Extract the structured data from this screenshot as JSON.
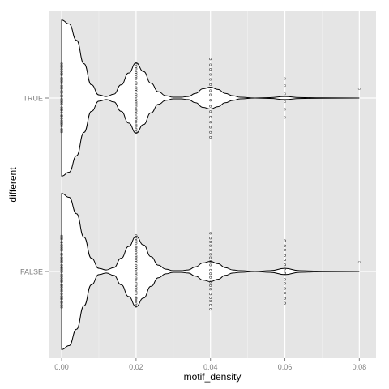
{
  "chart_data": {
    "type": "violin",
    "orientation": "horizontal",
    "title": "",
    "xlabel": "motif_density",
    "ylabel": "different",
    "xlim": [
      -0.0035,
      0.0845
    ],
    "x_ticks": [
      0.0,
      0.02,
      0.04,
      0.06,
      0.08
    ],
    "x_tick_labels": [
      "0.00",
      "0.02",
      "0.04",
      "0.06",
      "0.08"
    ],
    "categories": [
      "FALSE",
      "TRUE"
    ],
    "grid": true,
    "background": "#e5e5e5",
    "gridline_color": "#ffffff",
    "violin_fill": "#ffffff",
    "violin_stroke": "#000000",
    "point_color": "#333333",
    "violin_max_halfwidth_fraction": 0.45,
    "series": [
      {
        "category": "TRUE",
        "density": [
          [
            0.0,
            1.0
          ],
          [
            0.002,
            0.95
          ],
          [
            0.004,
            0.74
          ],
          [
            0.006,
            0.44
          ],
          [
            0.008,
            0.17
          ],
          [
            0.01,
            0.04
          ],
          [
            0.012,
            0.02
          ],
          [
            0.014,
            0.05
          ],
          [
            0.016,
            0.17
          ],
          [
            0.018,
            0.32
          ],
          [
            0.02,
            0.45
          ],
          [
            0.022,
            0.34
          ],
          [
            0.024,
            0.19
          ],
          [
            0.026,
            0.08
          ],
          [
            0.028,
            0.03
          ],
          [
            0.03,
            0.01
          ],
          [
            0.032,
            0.01
          ],
          [
            0.034,
            0.02
          ],
          [
            0.036,
            0.06
          ],
          [
            0.038,
            0.12
          ],
          [
            0.04,
            0.14
          ],
          [
            0.042,
            0.11
          ],
          [
            0.044,
            0.06
          ],
          [
            0.046,
            0.03
          ],
          [
            0.048,
            0.01
          ],
          [
            0.052,
            0.0
          ],
          [
            0.056,
            0.005
          ],
          [
            0.06,
            0.02
          ],
          [
            0.064,
            0.006
          ],
          [
            0.07,
            0.002
          ],
          [
            0.08,
            0.0
          ]
        ],
        "points": [
          {
            "x": 0.0,
            "count": 36,
            "spread": 0.44
          },
          {
            "x": 0.02,
            "count": 28,
            "spread": 0.43
          },
          {
            "x": 0.04,
            "count": 16,
            "spread": 0.5
          },
          {
            "x": 0.06,
            "count": 6,
            "spread": 0.25
          },
          {
            "x": 0.08,
            "count": 1,
            "spread": 0.0
          }
        ]
      },
      {
        "category": "FALSE",
        "density": [
          [
            0.0,
            1.0
          ],
          [
            0.002,
            0.95
          ],
          [
            0.004,
            0.74
          ],
          [
            0.006,
            0.44
          ],
          [
            0.008,
            0.17
          ],
          [
            0.01,
            0.04
          ],
          [
            0.012,
            0.02
          ],
          [
            0.014,
            0.05
          ],
          [
            0.016,
            0.17
          ],
          [
            0.018,
            0.32
          ],
          [
            0.02,
            0.45
          ],
          [
            0.022,
            0.34
          ],
          [
            0.024,
            0.19
          ],
          [
            0.026,
            0.08
          ],
          [
            0.028,
            0.03
          ],
          [
            0.03,
            0.01
          ],
          [
            0.032,
            0.01
          ],
          [
            0.034,
            0.02
          ],
          [
            0.036,
            0.06
          ],
          [
            0.038,
            0.11
          ],
          [
            0.04,
            0.13
          ],
          [
            0.042,
            0.1
          ],
          [
            0.044,
            0.05
          ],
          [
            0.046,
            0.02
          ],
          [
            0.048,
            0.01
          ],
          [
            0.052,
            0.0
          ],
          [
            0.056,
            0.01
          ],
          [
            0.06,
            0.04
          ],
          [
            0.064,
            0.01
          ],
          [
            0.07,
            0.002
          ],
          [
            0.08,
            0.0
          ]
        ],
        "points": [
          {
            "x": 0.0,
            "count": 38,
            "spread": 0.46
          },
          {
            "x": 0.02,
            "count": 30,
            "spread": 0.45
          },
          {
            "x": 0.04,
            "count": 20,
            "spread": 0.48
          },
          {
            "x": 0.06,
            "count": 14,
            "spread": 0.4
          },
          {
            "x": 0.08,
            "count": 1,
            "spread": 0.0
          }
        ]
      }
    ]
  }
}
